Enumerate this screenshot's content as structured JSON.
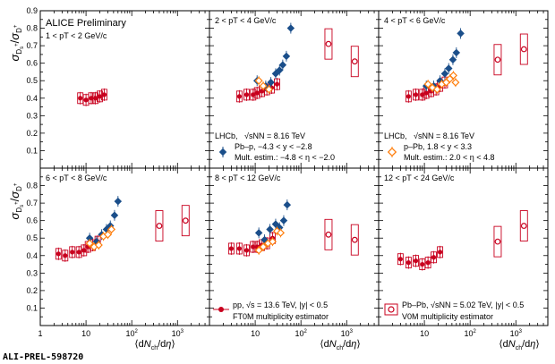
{
  "chart_data": {
    "type": "scatter",
    "figure_label": "ALI-PREL-598720",
    "xlabel": "⟨dN_ch/dη⟩",
    "ylabel": "σ_Ds+/σ_D+",
    "xscale": "log",
    "xlim": [
      1,
      5000
    ],
    "ylim": [
      0,
      0.9
    ],
    "x_ticklabels": [
      "1",
      "10",
      "10²",
      "10³"
    ],
    "y_ticklabels": [
      "0.1",
      "0.2",
      "0.3",
      "0.4",
      "0.5",
      "0.6",
      "0.7",
      "0.8",
      "0.9"
    ],
    "preliminary_label": "ALICE Preliminary",
    "colors": {
      "pp": "#c8001e",
      "pbpb": "#c8001e",
      "lhcb_pPb": "#1a4e8a",
      "lhcb_ppb": "#ff7f0e"
    },
    "legends": {
      "lhcb_pPb": {
        "experiment": "LHCb,",
        "energy": "√sNN = 8.16 TeV",
        "line1": "Pb–p, −4.3 < y < −2.8",
        "line2": "Mult. estim.: −4.8 < η < −2.0"
      },
      "lhcb_ppb": {
        "experiment": "LHCb,",
        "energy": "√sNN = 8.16 TeV",
        "line1": "p–Pb, 1.8 < y < 3.3",
        "line2": "Mult. estim.: 2.0 < η < 4.8"
      },
      "pp": {
        "line1": "pp, √s = 13.6 TeV, |y| < 0.5",
        "line2": "FT0M multiplicity estimator"
      },
      "pbpb": {
        "line1": "Pb–Pb, √sNN = 5.02 TeV, |y| < 0.5",
        "line2": "V0M multiplicity estimator"
      }
    },
    "panels": [
      {
        "pt_label": "1 < pT < 2 GeV/c",
        "series": [
          {
            "key": "pp",
            "points": [
              [
                7.5,
                0.4
              ],
              [
                10,
                0.39
              ],
              [
                13,
                0.4
              ],
              [
                16,
                0.4
              ],
              [
                20,
                0.41
              ],
              [
                25,
                0.42
              ]
            ]
          }
        ]
      },
      {
        "pt_label": "2 < pT < 4 GeV/c",
        "series": [
          {
            "key": "pp",
            "points": [
              [
                4.5,
                0.41
              ],
              [
                6.5,
                0.42
              ],
              [
                9,
                0.42
              ],
              [
                11,
                0.43
              ],
              [
                14,
                0.44
              ],
              [
                18,
                0.45
              ],
              [
                23,
                0.46
              ],
              [
                30,
                0.48
              ]
            ]
          },
          {
            "key": "pbpb",
            "points": [
              [
                400,
                0.71
              ],
              [
                1500,
                0.61
              ]
            ]
          },
          {
            "key": "lhcb_pPb",
            "points": [
              [
                11,
                0.5
              ],
              [
                17,
                0.47
              ],
              [
                22,
                0.49
              ],
              [
                28,
                0.54
              ],
              [
                34,
                0.56
              ],
              [
                40,
                0.59
              ],
              [
                48,
                0.64
              ],
              [
                60,
                0.8
              ]
            ]
          },
          {
            "key": "lhcb_ppb",
            "points": [
              [
                12,
                0.5
              ],
              [
                15,
                0.47
              ],
              [
                20,
                0.45
              ]
            ]
          }
        ]
      },
      {
        "pt_label": "4 < pT < 6 GeV/c",
        "series": [
          {
            "key": "pp",
            "points": [
              [
                4.5,
                0.41
              ],
              [
                6.5,
                0.42
              ],
              [
                9,
                0.42
              ],
              [
                11,
                0.43
              ],
              [
                14,
                0.44
              ],
              [
                18,
                0.45
              ],
              [
                22,
                0.47
              ],
              [
                28,
                0.49
              ]
            ]
          },
          {
            "key": "pbpb",
            "points": [
              [
                400,
                0.62
              ],
              [
                1500,
                0.68
              ]
            ]
          },
          {
            "key": "lhcb_pPb",
            "points": [
              [
                11,
                0.47
              ],
              [
                16,
                0.47
              ],
              [
                22,
                0.5
              ],
              [
                28,
                0.54
              ],
              [
                34,
                0.57
              ],
              [
                42,
                0.62
              ],
              [
                50,
                0.66
              ],
              [
                62,
                0.77
              ]
            ]
          },
          {
            "key": "lhcb_ppb",
            "points": [
              [
                12,
                0.48
              ],
              [
                15,
                0.46
              ],
              [
                19,
                0.45
              ],
              [
                24,
                0.48
              ],
              [
                30,
                0.49
              ],
              [
                36,
                0.51
              ],
              [
                43,
                0.53
              ],
              [
                48,
                0.49
              ]
            ]
          }
        ]
      },
      {
        "pt_label": "6 < pT < 8 GeV/c",
        "series": [
          {
            "key": "pp",
            "points": [
              [
                2.5,
                0.41
              ],
              [
                3.5,
                0.4
              ],
              [
                5,
                0.42
              ],
              [
                7,
                0.42
              ],
              [
                9,
                0.43
              ],
              [
                11,
                0.45
              ],
              [
                14,
                0.46
              ],
              [
                18,
                0.48
              ]
            ]
          },
          {
            "key": "pbpb",
            "points": [
              [
                400,
                0.57
              ],
              [
                1500,
                0.6
              ]
            ]
          },
          {
            "key": "lhcb_pPb",
            "points": [
              [
                12,
                0.5
              ],
              [
                17,
                0.48
              ],
              [
                22,
                0.52
              ],
              [
                28,
                0.55
              ],
              [
                34,
                0.57
              ],
              [
                42,
                0.63
              ],
              [
                50,
                0.71
              ]
            ]
          },
          {
            "key": "lhcb_ppb",
            "points": [
              [
                12,
                0.47
              ],
              [
                15,
                0.45
              ],
              [
                19,
                0.46
              ],
              [
                24,
                0.51
              ],
              [
                30,
                0.52
              ],
              [
                36,
                0.55
              ]
            ]
          }
        ]
      },
      {
        "pt_label": "8 < pT < 12 GeV/c",
        "series": [
          {
            "key": "pp",
            "points": [
              [
                3,
                0.44
              ],
              [
                4.5,
                0.44
              ],
              [
                6.5,
                0.43
              ],
              [
                9,
                0.45
              ],
              [
                11,
                0.45
              ],
              [
                14,
                0.46
              ],
              [
                18,
                0.47
              ],
              [
                24,
                0.5
              ]
            ]
          },
          {
            "key": "pbpb",
            "points": [
              [
                400,
                0.52
              ],
              [
                1500,
                0.49
              ]
            ]
          },
          {
            "key": "lhcb_pPb",
            "points": [
              [
                12,
                0.53
              ],
              [
                16,
                0.49
              ],
              [
                21,
                0.55
              ],
              [
                28,
                0.58
              ],
              [
                34,
                0.56
              ],
              [
                42,
                0.6
              ],
              [
                50,
                0.69
              ]
            ]
          },
          {
            "key": "lhcb_ppb",
            "points": [
              [
                12,
                0.43
              ],
              [
                15,
                0.45
              ],
              [
                19,
                0.47
              ],
              [
                24,
                0.48
              ],
              [
                30,
                0.54
              ],
              [
                36,
                0.53
              ]
            ]
          }
        ]
      },
      {
        "pt_label": "12 < pT < 24 GeV/c",
        "series": [
          {
            "key": "pp",
            "points": [
              [
                3,
                0.38
              ],
              [
                4.5,
                0.36
              ],
              [
                6.5,
                0.37
              ],
              [
                9,
                0.35
              ],
              [
                12,
                0.36
              ],
              [
                16,
                0.39
              ],
              [
                22,
                0.42
              ]
            ]
          },
          {
            "key": "pbpb",
            "points": [
              [
                400,
                0.48
              ],
              [
                1500,
                0.57
              ]
            ]
          }
        ]
      }
    ]
  }
}
